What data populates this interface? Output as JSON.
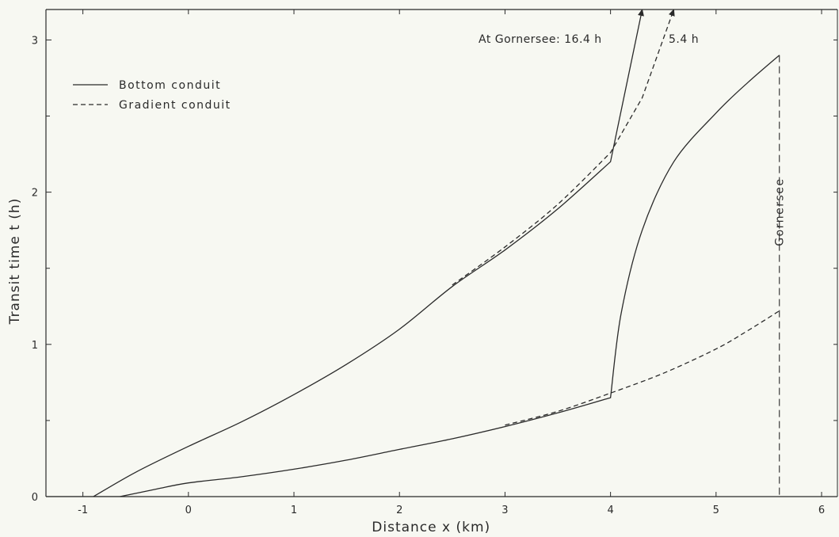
{
  "chart_data": {
    "type": "line",
    "title": "",
    "xlabel": "Distance  x  (km)",
    "ylabel": "Transit time  t  (h)",
    "xlim": [
      -1.35,
      6.15
    ],
    "ylim": [
      0,
      3.2
    ],
    "xticks": [
      -1,
      0,
      1,
      2,
      3,
      4,
      5,
      6
    ],
    "xtick_labels": [
      "-1",
      "0",
      "1",
      "2",
      "3",
      "4",
      "5",
      "6"
    ],
    "yticks": [
      0,
      1,
      2,
      3
    ],
    "ytick_labels": [
      "0",
      "1",
      "2",
      "3"
    ],
    "grid": false,
    "legend_position": "top-left",
    "legend": [
      {
        "label": "Bottom  conduit",
        "style": "solid"
      },
      {
        "label": "Gradient  conduit",
        "style": "dashed"
      }
    ],
    "series": [
      {
        "name": "Bottom  conduit",
        "style": "solid",
        "group": "upper",
        "x": [
          -0.9,
          -0.5,
          0.0,
          0.5,
          1.0,
          1.5,
          2.0,
          2.5,
          3.0,
          3.5,
          4.0,
          4.3
        ],
        "y": [
          0.0,
          0.16,
          0.33,
          0.49,
          0.67,
          0.87,
          1.1,
          1.38,
          1.62,
          1.89,
          2.2,
          3.2
        ],
        "arrow": true
      },
      {
        "name": "Gradient  conduit",
        "style": "dashed",
        "group": "upper",
        "x": [
          2.5,
          3.0,
          3.5,
          4.0,
          4.3,
          4.6
        ],
        "y": [
          1.39,
          1.64,
          1.92,
          2.26,
          2.62,
          3.2
        ],
        "arrow": true
      },
      {
        "name": "Bottom  conduit",
        "style": "solid",
        "group": "lower",
        "x": [
          -0.65,
          -0.3,
          0.0,
          0.5,
          1.0,
          1.5,
          2.0,
          2.5,
          3.0,
          3.5,
          4.0,
          4.1,
          4.3,
          4.6,
          5.0,
          5.3,
          5.6
        ],
        "y": [
          0.0,
          0.05,
          0.09,
          0.13,
          0.18,
          0.24,
          0.31,
          0.38,
          0.46,
          0.55,
          0.65,
          1.2,
          1.75,
          2.2,
          2.52,
          2.72,
          2.9
        ],
        "arrow": false
      },
      {
        "name": "Gradient  conduit",
        "style": "dashed",
        "group": "lower",
        "x": [
          3.0,
          3.5,
          4.0,
          4.5,
          5.0,
          5.3,
          5.6
        ],
        "y": [
          0.47,
          0.56,
          0.68,
          0.81,
          0.97,
          1.09,
          1.22
        ],
        "arrow": false
      },
      {
        "name": "",
        "style": "solid",
        "group": "baseline",
        "x": [
          -1.35,
          -0.65
        ],
        "y": [
          0.0,
          0.0
        ],
        "arrow": false
      }
    ],
    "vline": {
      "x": 5.6,
      "label": "Gornersee",
      "style": "dashed"
    },
    "annotations": {
      "gornersee_bottom": "At  Gornersee: 16.4 h",
      "gornersee_gradient": "5.4 h"
    }
  }
}
